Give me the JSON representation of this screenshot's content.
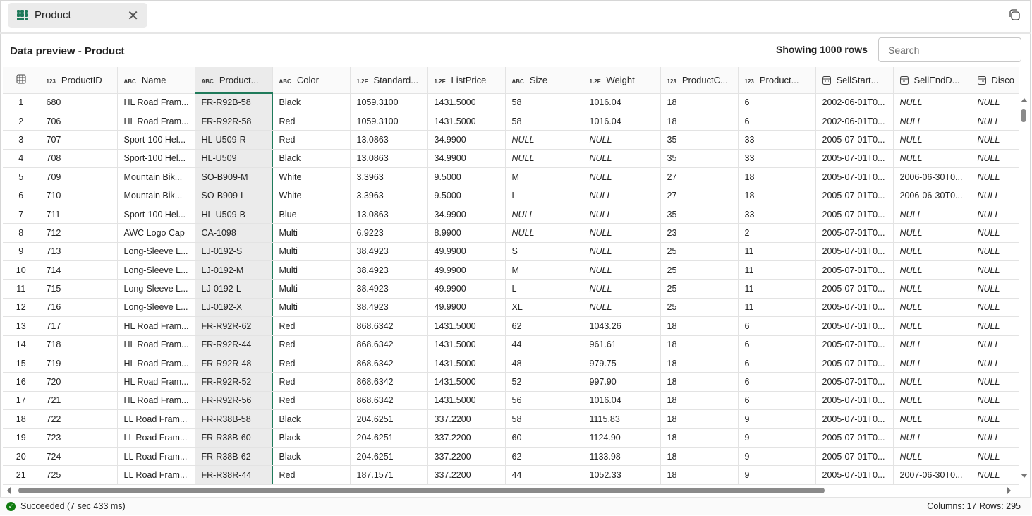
{
  "tab": {
    "label": "Product",
    "icon": "table-icon",
    "close_icon": "close-icon"
  },
  "header": {
    "title": "Data preview - Product",
    "showing": "Showing 1000 rows",
    "search_placeholder": "Search"
  },
  "columns": [
    {
      "type": "123",
      "label": "ProductID"
    },
    {
      "type": "ABC",
      "label": "Name"
    },
    {
      "type": "ABC",
      "label": "Product..."
    },
    {
      "type": "ABC",
      "label": "Color"
    },
    {
      "type": "1.2F",
      "label": "Standard..."
    },
    {
      "type": "1.2F",
      "label": "ListPrice"
    },
    {
      "type": "ABC",
      "label": "Size"
    },
    {
      "type": "1.2F",
      "label": "Weight"
    },
    {
      "type": "123",
      "label": "ProductC..."
    },
    {
      "type": "123",
      "label": "Product..."
    },
    {
      "type": "date",
      "label": "SellStart..."
    },
    {
      "type": "date",
      "label": "SellEndD..."
    },
    {
      "type": "date",
      "label": "Disco"
    }
  ],
  "rows": [
    [
      "1",
      "680",
      "HL Road Fram...",
      "FR-R92B-58",
      "Black",
      "1059.3100",
      "1431.5000",
      "58",
      "1016.04",
      "18",
      "6",
      "2002-06-01T0...",
      "NULL",
      "NULL"
    ],
    [
      "2",
      "706",
      "HL Road Fram...",
      "FR-R92R-58",
      "Red",
      "1059.3100",
      "1431.5000",
      "58",
      "1016.04",
      "18",
      "6",
      "2002-06-01T0...",
      "NULL",
      "NULL"
    ],
    [
      "3",
      "707",
      "Sport-100 Hel...",
      "HL-U509-R",
      "Red",
      "13.0863",
      "34.9900",
      "NULL",
      "NULL",
      "35",
      "33",
      "2005-07-01T0...",
      "NULL",
      "NULL"
    ],
    [
      "4",
      "708",
      "Sport-100 Hel...",
      "HL-U509",
      "Black",
      "13.0863",
      "34.9900",
      "NULL",
      "NULL",
      "35",
      "33",
      "2005-07-01T0...",
      "NULL",
      "NULL"
    ],
    [
      "5",
      "709",
      "Mountain Bik...",
      "SO-B909-M",
      "White",
      "3.3963",
      "9.5000",
      "M",
      "NULL",
      "27",
      "18",
      "2005-07-01T0...",
      "2006-06-30T0...",
      "NULL"
    ],
    [
      "6",
      "710",
      "Mountain Bik...",
      "SO-B909-L",
      "White",
      "3.3963",
      "9.5000",
      "L",
      "NULL",
      "27",
      "18",
      "2005-07-01T0...",
      "2006-06-30T0...",
      "NULL"
    ],
    [
      "7",
      "711",
      "Sport-100 Hel...",
      "HL-U509-B",
      "Blue",
      "13.0863",
      "34.9900",
      "NULL",
      "NULL",
      "35",
      "33",
      "2005-07-01T0...",
      "NULL",
      "NULL"
    ],
    [
      "8",
      "712",
      "AWC Logo Cap",
      "CA-1098",
      "Multi",
      "6.9223",
      "8.9900",
      "NULL",
      "NULL",
      "23",
      "2",
      "2005-07-01T0...",
      "NULL",
      "NULL"
    ],
    [
      "9",
      "713",
      "Long-Sleeve L...",
      "LJ-0192-S",
      "Multi",
      "38.4923",
      "49.9900",
      "S",
      "NULL",
      "25",
      "11",
      "2005-07-01T0...",
      "NULL",
      "NULL"
    ],
    [
      "10",
      "714",
      "Long-Sleeve L...",
      "LJ-0192-M",
      "Multi",
      "38.4923",
      "49.9900",
      "M",
      "NULL",
      "25",
      "11",
      "2005-07-01T0...",
      "NULL",
      "NULL"
    ],
    [
      "11",
      "715",
      "Long-Sleeve L...",
      "LJ-0192-L",
      "Multi",
      "38.4923",
      "49.9900",
      "L",
      "NULL",
      "25",
      "11",
      "2005-07-01T0...",
      "NULL",
      "NULL"
    ],
    [
      "12",
      "716",
      "Long-Sleeve L...",
      "LJ-0192-X",
      "Multi",
      "38.4923",
      "49.9900",
      "XL",
      "NULL",
      "25",
      "11",
      "2005-07-01T0...",
      "NULL",
      "NULL"
    ],
    [
      "13",
      "717",
      "HL Road Fram...",
      "FR-R92R-62",
      "Red",
      "868.6342",
      "1431.5000",
      "62",
      "1043.26",
      "18",
      "6",
      "2005-07-01T0...",
      "NULL",
      "NULL"
    ],
    [
      "14",
      "718",
      "HL Road Fram...",
      "FR-R92R-44",
      "Red",
      "868.6342",
      "1431.5000",
      "44",
      "961.61",
      "18",
      "6",
      "2005-07-01T0...",
      "NULL",
      "NULL"
    ],
    [
      "15",
      "719",
      "HL Road Fram...",
      "FR-R92R-48",
      "Red",
      "868.6342",
      "1431.5000",
      "48",
      "979.75",
      "18",
      "6",
      "2005-07-01T0...",
      "NULL",
      "NULL"
    ],
    [
      "16",
      "720",
      "HL Road Fram...",
      "FR-R92R-52",
      "Red",
      "868.6342",
      "1431.5000",
      "52",
      "997.90",
      "18",
      "6",
      "2005-07-01T0...",
      "NULL",
      "NULL"
    ],
    [
      "17",
      "721",
      "HL Road Fram...",
      "FR-R92R-56",
      "Red",
      "868.6342",
      "1431.5000",
      "56",
      "1016.04",
      "18",
      "6",
      "2005-07-01T0...",
      "NULL",
      "NULL"
    ],
    [
      "18",
      "722",
      "LL Road Fram...",
      "FR-R38B-58",
      "Black",
      "204.6251",
      "337.2200",
      "58",
      "1115.83",
      "18",
      "9",
      "2005-07-01T0...",
      "NULL",
      "NULL"
    ],
    [
      "19",
      "723",
      "LL Road Fram...",
      "FR-R38B-60",
      "Black",
      "204.6251",
      "337.2200",
      "60",
      "1124.90",
      "18",
      "9",
      "2005-07-01T0...",
      "NULL",
      "NULL"
    ],
    [
      "20",
      "724",
      "LL Road Fram...",
      "FR-R38B-62",
      "Black",
      "204.6251",
      "337.2200",
      "62",
      "1133.98",
      "18",
      "9",
      "2005-07-01T0...",
      "NULL",
      "NULL"
    ],
    [
      "21",
      "725",
      "LL Road Fram...",
      "FR-R38R-44",
      "Red",
      "187.1571",
      "337.2200",
      "44",
      "1052.33",
      "18",
      "9",
      "2005-07-01T0...",
      "2007-06-30T0...",
      "NULL"
    ]
  ],
  "status": {
    "text": "Succeeded (7 sec 433 ms)",
    "counts": "Columns: 17 Rows: 295",
    "accent": "#107c10"
  },
  "colors": {
    "brand": "#1f7a5a"
  }
}
